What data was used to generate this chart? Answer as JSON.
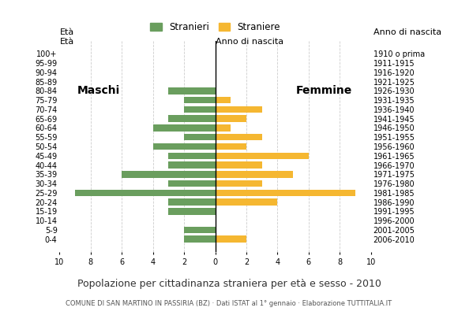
{
  "age_groups": [
    "100+",
    "95-99",
    "90-94",
    "85-89",
    "80-84",
    "75-79",
    "70-74",
    "65-69",
    "60-64",
    "55-59",
    "50-54",
    "45-49",
    "40-44",
    "35-39",
    "30-34",
    "25-29",
    "20-24",
    "15-19",
    "10-14",
    "5-9",
    "0-4"
  ],
  "birth_years": [
    "1910 o prima",
    "1911-1915",
    "1916-1920",
    "1921-1925",
    "1926-1930",
    "1931-1935",
    "1936-1940",
    "1941-1945",
    "1946-1950",
    "1951-1955",
    "1956-1960",
    "1961-1965",
    "1966-1970",
    "1971-1975",
    "1976-1980",
    "1981-1985",
    "1986-1990",
    "1991-1995",
    "1996-2000",
    "2001-2005",
    "2006-2010"
  ],
  "males": [
    0,
    0,
    0,
    0,
    3,
    2,
    2,
    3,
    4,
    2,
    4,
    3,
    3,
    6,
    3,
    9,
    3,
    3,
    0,
    2,
    2
  ],
  "females": [
    0,
    0,
    0,
    0,
    0,
    1,
    3,
    2,
    1,
    3,
    2,
    6,
    3,
    5,
    3,
    9,
    4,
    0,
    0,
    0,
    2
  ],
  "male_color": "#6a9e5e",
  "female_color": "#f5b731",
  "title": "Popolazione per cittadinanza straniera per età e sesso - 2010",
  "subtitle": "COMUNE DI SAN MARTINO IN PASSIRIA (BZ) · Dati ISTAT al 1° gennaio · Elaborazione TUTTITALIA.IT",
  "legend_male": "Stranieri",
  "legend_female": "Straniere",
  "label_eta": "Età",
  "label_anno": "Anno di nascita",
  "label_maschi": "Maschi",
  "label_femmine": "Femmine",
  "xlim": 10,
  "background_color": "#ffffff",
  "grid_color": "#cccccc"
}
